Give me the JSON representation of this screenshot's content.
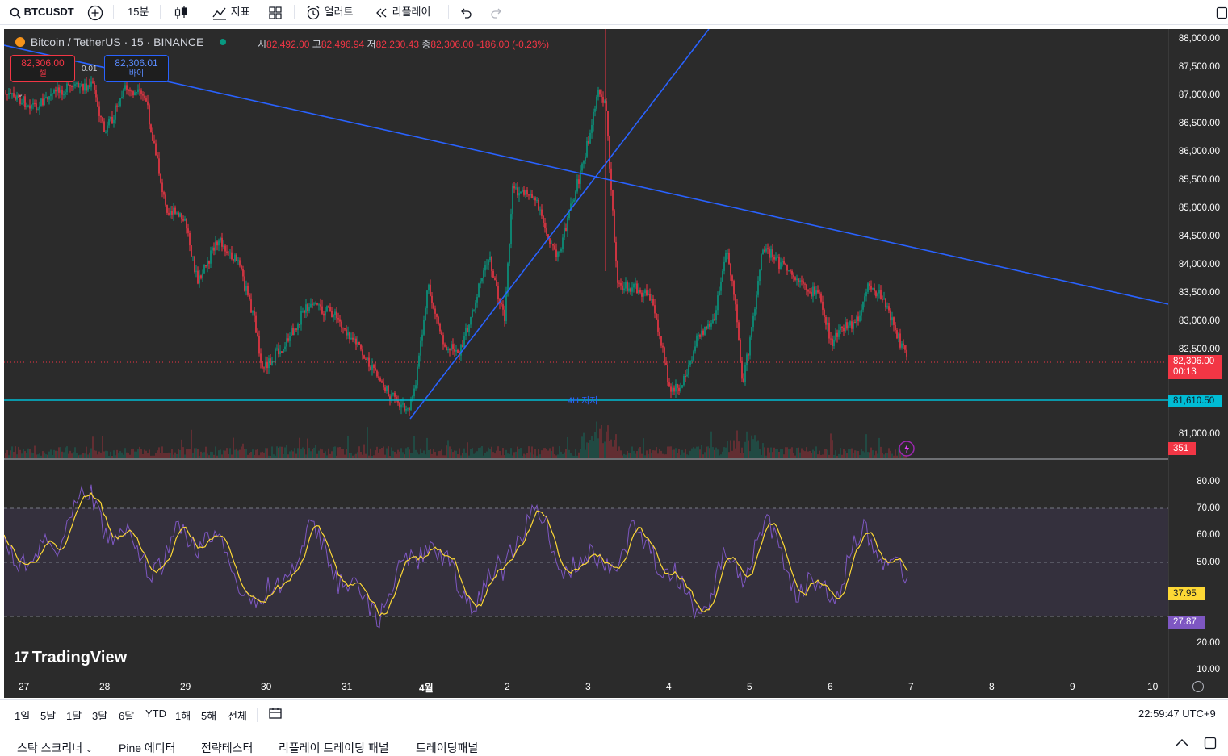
{
  "toolbar": {
    "symbol": "BTCUSDT",
    "interval": "15분",
    "indicators": "지표",
    "alert": "얼러트",
    "replay": "리플레이"
  },
  "legend": {
    "title": "Bitcoin / TetherUS · 15 · BINANCE",
    "o_label": "시",
    "o": "82,492.00",
    "h_label": "고",
    "h": "82,496.94",
    "l_label": "저",
    "l": "82,230.43",
    "c_label": "종",
    "c": "82,306.00",
    "change": "-186.00 (-0.23%)"
  },
  "trade": {
    "sell_price": "82,306.00",
    "sell_label": "셀",
    "spread": "0.01",
    "buy_price": "82,306.01",
    "buy_label": "바이"
  },
  "price_axis": [
    "88,000.00",
    "87,500.00",
    "87,000.00",
    "86,500.00",
    "86,000.00",
    "85,500.00",
    "85,000.00",
    "84,500.00",
    "84,000.00",
    "83,500.00",
    "83,000.00",
    "82,500.00",
    "81,000.00"
  ],
  "price_tags": {
    "last": "82,306.00",
    "countdown": "00:13",
    "support": "81,610.50",
    "volume": "351"
  },
  "support_label": "4H 지지",
  "rsi_axis": [
    "80.00",
    "70.00",
    "60.00",
    "50.00",
    "20.00",
    "10.00"
  ],
  "rsi_tags": {
    "ma": "37.95",
    "rsi": "27.87"
  },
  "time_axis": [
    "27",
    "28",
    "29",
    "30",
    "31",
    "4월",
    "2",
    "3",
    "4",
    "5",
    "6",
    "7",
    "8",
    "9",
    "10"
  ],
  "watermark": "TradingView",
  "ranges": [
    "1일",
    "5날",
    "1달",
    "3달",
    "6달",
    "YTD",
    "1해",
    "5해",
    "전체"
  ],
  "clock": "22:59:47 UTC+9",
  "panels": [
    "스탁 스크리너",
    "Pine 에디터",
    "전략테스터",
    "리플레이 트레이딩 패널",
    "트레이딩패널"
  ],
  "colors": {
    "bg": "#2b2b2b",
    "up": "#089981",
    "down": "#f23645",
    "trend": "#2962ff",
    "support": "#00bcd4",
    "rsi": "#7e57c2",
    "rsi_ma": "#fdd835"
  }
}
